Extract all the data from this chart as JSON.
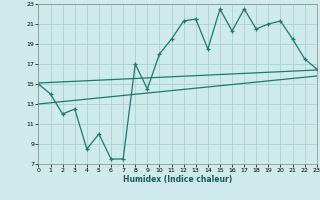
{
  "xlabel": "Humidex (Indice chaleur)",
  "background_color": "#ceeaea",
  "grid_color": "#afd4d4",
  "line_color": "#1a7a6e",
  "x_min": 0,
  "x_max": 23,
  "y_min": 7,
  "y_max": 23,
  "yticks": [
    7,
    9,
    11,
    13,
    15,
    17,
    19,
    21,
    23
  ],
  "xticks": [
    0,
    1,
    2,
    3,
    4,
    5,
    6,
    7,
    8,
    9,
    10,
    11,
    12,
    13,
    14,
    15,
    16,
    17,
    18,
    19,
    20,
    21,
    22,
    23
  ],
  "main_line_x": [
    0,
    1,
    2,
    3,
    4,
    5,
    6,
    7,
    8,
    9,
    10,
    11,
    12,
    13,
    14,
    15,
    16,
    17,
    18,
    19,
    20,
    21,
    22,
    23
  ],
  "main_line_y": [
    15,
    14,
    12,
    12.5,
    8.5,
    10,
    7.5,
    7.5,
    17,
    14.5,
    18,
    19.5,
    21.3,
    21.5,
    18.5,
    22.5,
    20.3,
    22.5,
    20.5,
    21,
    21.3,
    19.5,
    17.5,
    16.5
  ],
  "upper_line_x": [
    0,
    23
  ],
  "upper_line_y": [
    15.1,
    16.4
  ],
  "lower_line_x": [
    0,
    23
  ],
  "lower_line_y": [
    13.0,
    15.8
  ]
}
